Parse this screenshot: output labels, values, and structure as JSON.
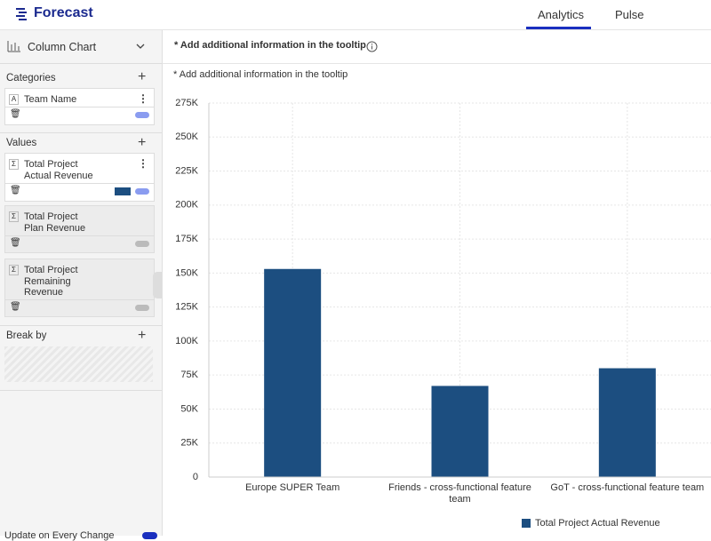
{
  "header": {
    "logo": "Forecast",
    "tabs": [
      "Analytics",
      "Pulse"
    ]
  },
  "sidebar": {
    "chart_type": "Column Chart",
    "categories": {
      "title": "Categories",
      "items": [
        "Team Name"
      ]
    },
    "values": {
      "title": "Values",
      "items": [
        "Total Project Actual Revenue",
        "Total Project Plan Revenue",
        "Total Project Remaining Revenue"
      ]
    },
    "break_by": {
      "title": "Break by"
    },
    "footer": "Update on Every Change"
  },
  "tooltip_heading": "* Add additional information in the tooltip",
  "tooltip_note": "* Add additional information in the tooltip",
  "chart_data": {
    "type": "bar",
    "categories": [
      "Europe SUPER Team",
      "Friends - cross-functional feature team",
      "GoT - cross-functional feature team"
    ],
    "series": [
      {
        "name": "Total Project Actual Revenue",
        "color": "#1c4e80",
        "values": [
          153000,
          67000,
          80000
        ]
      }
    ],
    "ylim": [
      0,
      275000
    ],
    "yticks": [
      0,
      {
        "value": 25000,
        "label": "25K"
      },
      {
        "value": 50000,
        "label": "50K"
      },
      {
        "value": 75000,
        "label": "75K"
      },
      {
        "value": 100000,
        "label": "100K"
      },
      {
        "value": 125000,
        "label": "125K"
      },
      {
        "value": 150000,
        "label": "150K"
      },
      {
        "value": 175000,
        "label": "175K"
      },
      {
        "value": 200000,
        "label": "200K"
      },
      {
        "value": 225000,
        "label": "225K"
      },
      {
        "value": 250000,
        "label": "250K"
      },
      {
        "value": 275000,
        "label": "275K"
      }
    ],
    "grid": true,
    "legend": "bottom-right"
  }
}
